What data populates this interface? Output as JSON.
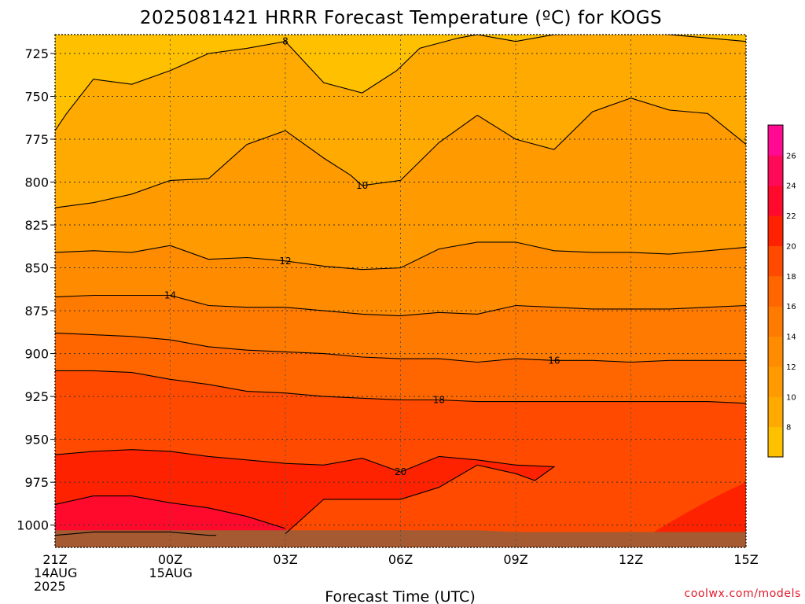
{
  "chart_data": {
    "type": "heatmap",
    "title": "2025081421 HRRR Forecast Temperature (ºC) for KOGS",
    "xlabel": "Forecast Time (UTC)",
    "ylabel": "",
    "credit": "coolwx.com/models",
    "y_scale": "pressure, decreasing upward",
    "ylim": [
      1013,
      714
    ],
    "yticks": [
      725,
      750,
      775,
      800,
      825,
      850,
      875,
      900,
      925,
      950,
      975,
      1000
    ],
    "xlim": [
      0,
      18
    ],
    "xticks": [
      {
        "x": 0,
        "lines": [
          "21Z",
          "14AUG",
          "2025"
        ]
      },
      {
        "x": 3,
        "lines": [
          "00Z",
          "15AUG"
        ]
      },
      {
        "x": 6,
        "lines": [
          "03Z"
        ]
      },
      {
        "x": 9,
        "lines": [
          "06Z"
        ]
      },
      {
        "x": 12,
        "lines": [
          "09Z"
        ]
      },
      {
        "x": 15,
        "lines": [
          "12Z"
        ]
      },
      {
        "x": 18,
        "lines": [
          "15Z"
        ]
      }
    ],
    "grid": true,
    "colorbar": {
      "levels": [
        6,
        8,
        10,
        12,
        14,
        16,
        18,
        20,
        22,
        24,
        26,
        28
      ],
      "labels": [
        8,
        10,
        12,
        14,
        16,
        18,
        20,
        22,
        24,
        26
      ],
      "colors": [
        "#ffc000",
        "#ffaa00",
        "#ff9a00",
        "#ff8c00",
        "#ff7a00",
        "#ff6600",
        "#ff4a00",
        "#ff2200",
        "#ff0a2c",
        "#ff0a58",
        "#ff0a90"
      ]
    },
    "surface_color": "#a65a32",
    "surface_pressure": [
      1003,
      1003,
      1003,
      1003,
      1003,
      1003,
      1003,
      1003,
      1003,
      1003,
      1003,
      1003,
      1004,
      1004,
      1004,
      1004,
      1004,
      1004,
      1004
    ],
    "contours": [
      {
        "level": 8,
        "label": "8",
        "label_at": [
          6,
          718
        ],
        "points": [
          [
            0,
            770
          ],
          [
            0.3,
            760
          ],
          [
            1,
            740
          ],
          [
            2,
            743
          ],
          [
            3,
            735
          ],
          [
            4,
            725
          ],
          [
            5,
            722
          ],
          [
            6,
            718
          ],
          [
            7,
            742
          ],
          [
            8,
            748
          ],
          [
            8.9,
            735
          ],
          [
            9.5,
            722
          ],
          [
            10.5,
            716
          ],
          [
            11,
            714
          ],
          [
            12,
            718
          ],
          [
            13,
            714
          ],
          [
            15.5,
            713
          ],
          [
            18,
            718
          ]
        ]
      },
      {
        "level": 10,
        "label": "10",
        "label_at": [
          8,
          802
        ],
        "points": [
          [
            0,
            815
          ],
          [
            1,
            812
          ],
          [
            2,
            807
          ],
          [
            3,
            799
          ],
          [
            4,
            798
          ],
          [
            5,
            778
          ],
          [
            6,
            770
          ],
          [
            7,
            786
          ],
          [
            7.7,
            796
          ],
          [
            8,
            802
          ],
          [
            9,
            799
          ],
          [
            10,
            777
          ],
          [
            11,
            761
          ],
          [
            12,
            775
          ],
          [
            13,
            781
          ],
          [
            14,
            759
          ],
          [
            15,
            751
          ],
          [
            16,
            758
          ],
          [
            17,
            760
          ],
          [
            18,
            778
          ]
        ]
      },
      {
        "level": 12,
        "label": "12",
        "label_at": [
          6,
          846
        ],
        "points": [
          [
            0,
            841
          ],
          [
            1,
            840
          ],
          [
            2,
            841
          ],
          [
            3,
            837
          ],
          [
            4,
            845
          ],
          [
            5,
            844
          ],
          [
            6,
            846
          ],
          [
            7,
            849
          ],
          [
            8,
            851
          ],
          [
            9,
            850
          ],
          [
            10,
            839
          ],
          [
            11,
            835
          ],
          [
            12,
            835
          ],
          [
            13,
            840
          ],
          [
            14,
            841
          ],
          [
            15,
            841
          ],
          [
            16,
            842
          ],
          [
            17,
            840
          ],
          [
            18,
            838
          ]
        ]
      },
      {
        "level": 14,
        "label": "14",
        "label_at": [
          3,
          866
        ],
        "points": [
          [
            0,
            867
          ],
          [
            1,
            866
          ],
          [
            2,
            866
          ],
          [
            3,
            866
          ],
          [
            4,
            872
          ],
          [
            5,
            873
          ],
          [
            6,
            873
          ],
          [
            7,
            875
          ],
          [
            8,
            877
          ],
          [
            9,
            878
          ],
          [
            10,
            876
          ],
          [
            11,
            877
          ],
          [
            12,
            872
          ],
          [
            13,
            873
          ],
          [
            14,
            874
          ],
          [
            15,
            874
          ],
          [
            16,
            874
          ],
          [
            17,
            873
          ],
          [
            18,
            872
          ]
        ]
      },
      {
        "level": 16,
        "label": "16",
        "label_at": [
          13,
          904
        ],
        "points": [
          [
            0,
            888
          ],
          [
            1,
            889
          ],
          [
            2,
            890
          ],
          [
            3,
            892
          ],
          [
            4,
            896
          ],
          [
            5,
            898
          ],
          [
            6,
            899
          ],
          [
            7,
            900
          ],
          [
            8,
            902
          ],
          [
            9,
            903
          ],
          [
            10,
            903
          ],
          [
            11,
            905
          ],
          [
            12,
            903
          ],
          [
            13,
            904
          ],
          [
            14,
            904
          ],
          [
            15,
            905
          ],
          [
            16,
            904
          ],
          [
            17,
            904
          ],
          [
            18,
            904
          ]
        ]
      },
      {
        "level": 18,
        "label": "18",
        "label_at": [
          10,
          927
        ],
        "points": [
          [
            0,
            910
          ],
          [
            1,
            910
          ],
          [
            2,
            911
          ],
          [
            3,
            915
          ],
          [
            4,
            918
          ],
          [
            5,
            922
          ],
          [
            6,
            923
          ],
          [
            7,
            925
          ],
          [
            8,
            926
          ],
          [
            9,
            927
          ],
          [
            10,
            927
          ],
          [
            11,
            928
          ],
          [
            12,
            928
          ],
          [
            13,
            928
          ],
          [
            14,
            928
          ],
          [
            15,
            928
          ],
          [
            16,
            928
          ],
          [
            17,
            928
          ],
          [
            18,
            929
          ]
        ]
      },
      {
        "level": 20,
        "label": "20",
        "label_at": [
          9,
          969
        ],
        "points": [
          [
            0,
            959
          ],
          [
            1,
            957
          ],
          [
            2,
            956
          ],
          [
            3,
            957
          ],
          [
            4,
            960
          ],
          [
            5,
            962
          ],
          [
            6,
            964
          ],
          [
            7,
            965
          ],
          [
            8,
            961
          ],
          [
            9,
            969
          ],
          [
            10,
            960
          ],
          [
            11,
            962
          ],
          [
            12,
            965
          ],
          [
            13,
            966
          ],
          [
            12.5,
            974
          ],
          [
            12,
            970
          ],
          [
            11,
            965
          ],
          [
            10,
            978
          ],
          [
            9,
            985
          ],
          [
            7,
            985
          ],
          [
            6,
            1005
          ]
        ]
      },
      {
        "level": 22,
        "label": "",
        "points": [
          [
            0,
            988
          ],
          [
            1,
            983
          ],
          [
            2,
            983
          ],
          [
            3,
            987
          ],
          [
            4,
            990
          ],
          [
            5,
            995
          ],
          [
            6,
            1002
          ]
        ]
      },
      {
        "level": 24,
        "label": "",
        "points": [
          [
            0,
            1006
          ],
          [
            1,
            1004
          ],
          [
            2,
            1004
          ],
          [
            3,
            1004
          ],
          [
            4,
            1006
          ],
          [
            4.2,
            1006
          ]
        ]
      }
    ]
  }
}
